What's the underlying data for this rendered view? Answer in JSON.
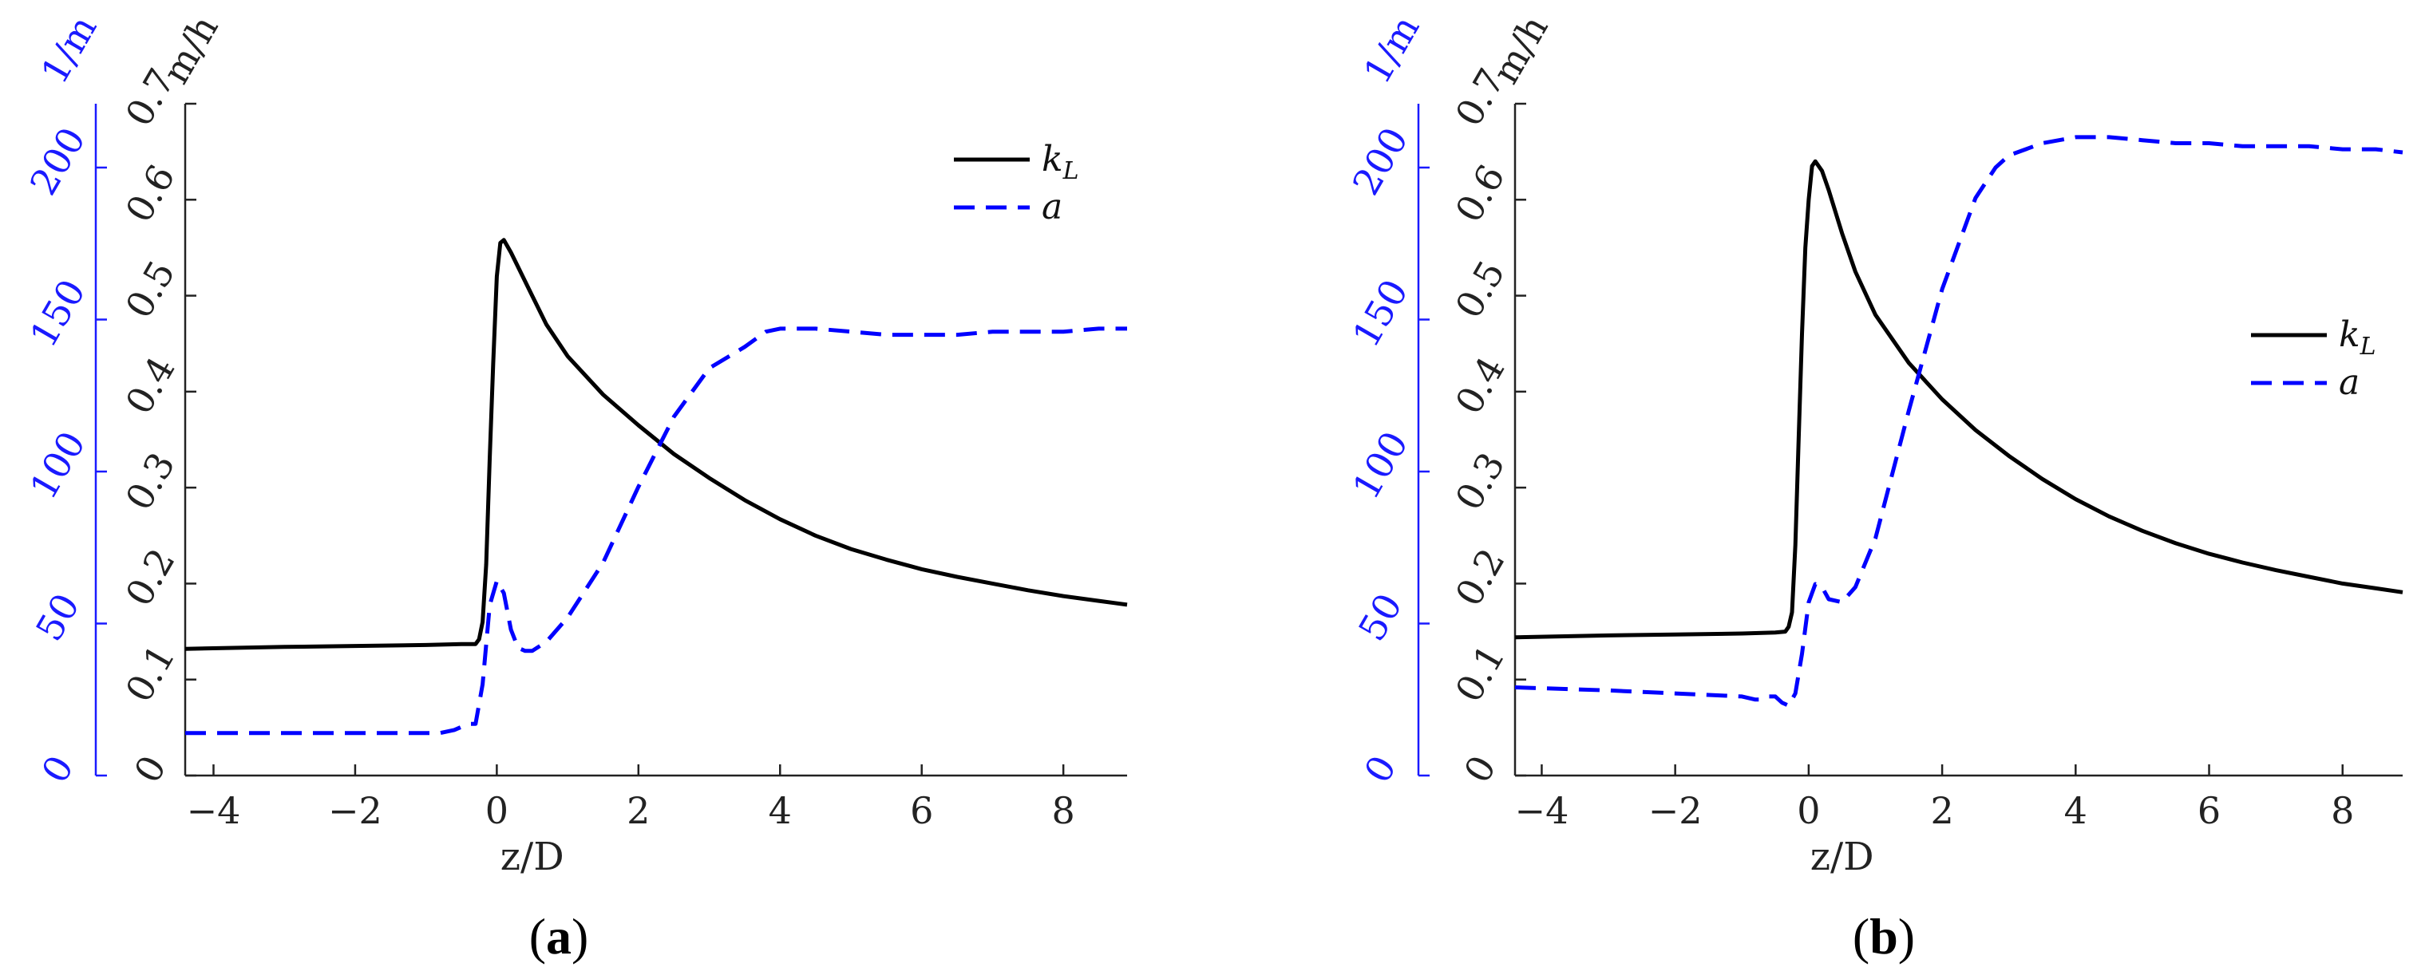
{
  "colors": {
    "kL": "#000000",
    "a": "#0000ff",
    "axis_k": "#222222",
    "axis_a": "#1a1aff"
  },
  "chart_data": [
    {
      "type": "line",
      "panel_label": "a",
      "xlabel": "z/D",
      "x_ticks": [
        -4,
        -2,
        0,
        2,
        4,
        6,
        8
      ],
      "xlim": [
        -4.4,
        8.9
      ],
      "kL_axis": {
        "unit": "m/h",
        "ylim": [
          0,
          0.7
        ],
        "ticks": [
          0,
          0.1,
          0.2,
          0.3,
          0.4,
          0.5,
          0.6,
          0.7
        ]
      },
      "a_axis": {
        "unit": "1/m",
        "ylim": [
          0,
          221
        ],
        "ticks": [
          0,
          50,
          100,
          150,
          200
        ]
      },
      "legend": {
        "position": "top-right"
      },
      "series": [
        {
          "name": "k",
          "name_subscript": "L",
          "axis": "kL",
          "style": "solid",
          "x": [
            -4.4,
            -3,
            -2,
            -1,
            -0.5,
            -0.3,
            -0.25,
            -0.2,
            -0.15,
            -0.1,
            -0.05,
            0,
            0.05,
            0.1,
            0.2,
            0.3,
            0.5,
            0.7,
            1,
            1.5,
            2,
            2.5,
            3,
            3.5,
            4,
            4.5,
            5,
            5.5,
            6,
            6.5,
            7,
            7.5,
            8,
            8.5,
            8.9
          ],
          "y": [
            0.132,
            0.134,
            0.135,
            0.136,
            0.137,
            0.137,
            0.142,
            0.16,
            0.22,
            0.33,
            0.43,
            0.52,
            0.555,
            0.558,
            0.545,
            0.53,
            0.5,
            0.47,
            0.437,
            0.397,
            0.365,
            0.335,
            0.31,
            0.287,
            0.267,
            0.25,
            0.236,
            0.225,
            0.215,
            0.207,
            0.2,
            0.193,
            0.187,
            0.182,
            0.178
          ]
        },
        {
          "name": "a",
          "axis": "a",
          "style": "dashed",
          "x": [
            -4.4,
            -3,
            -2,
            -1,
            -0.8,
            -0.6,
            -0.4,
            -0.3,
            -0.2,
            -0.1,
            0,
            0.1,
            0.2,
            0.3,
            0.4,
            0.5,
            0.7,
            1,
            1.5,
            2,
            2.5,
            3,
            3.5,
            3.8,
            4,
            4.5,
            5,
            5.5,
            6,
            6.5,
            7,
            7.5,
            8,
            8.5,
            8.9
          ],
          "y": [
            14,
            14,
            14,
            14,
            14,
            15,
            17,
            17,
            30,
            56,
            64,
            60,
            48,
            42,
            41,
            41,
            44,
            52,
            70,
            95,
            118,
            134,
            141,
            146,
            147,
            147,
            146,
            145,
            145,
            145,
            146,
            146,
            146,
            147,
            147
          ]
        }
      ]
    },
    {
      "type": "line",
      "panel_label": "b",
      "xlabel": "z/D",
      "x_ticks": [
        -4,
        -2,
        0,
        2,
        4,
        6,
        8
      ],
      "xlim": [
        -4.4,
        8.9
      ],
      "kL_axis": {
        "unit": "m/h",
        "ylim": [
          0,
          0.7
        ],
        "ticks": [
          0,
          0.1,
          0.2,
          0.3,
          0.4,
          0.5,
          0.6,
          0.7
        ]
      },
      "a_axis": {
        "unit": "1/m",
        "ylim": [
          0,
          221
        ],
        "ticks": [
          0,
          50,
          100,
          150,
          200
        ]
      },
      "legend": {
        "position": "right"
      },
      "series": [
        {
          "name": "k",
          "name_subscript": "L",
          "axis": "kL",
          "style": "solid",
          "x": [
            -4.4,
            -3,
            -2,
            -1,
            -0.5,
            -0.35,
            -0.3,
            -0.25,
            -0.2,
            -0.15,
            -0.1,
            -0.05,
            0,
            0.05,
            0.1,
            0.2,
            0.3,
            0.5,
            0.7,
            1,
            1.5,
            2,
            2.5,
            3,
            3.5,
            4,
            4.5,
            5,
            5.5,
            6,
            6.5,
            7,
            7.5,
            8,
            8.5,
            8.9
          ],
          "y": [
            0.144,
            0.146,
            0.147,
            0.148,
            0.149,
            0.15,
            0.155,
            0.17,
            0.24,
            0.35,
            0.46,
            0.55,
            0.6,
            0.635,
            0.64,
            0.63,
            0.61,
            0.565,
            0.525,
            0.48,
            0.43,
            0.392,
            0.36,
            0.333,
            0.309,
            0.288,
            0.27,
            0.255,
            0.242,
            0.231,
            0.222,
            0.214,
            0.207,
            0.2,
            0.195,
            0.191
          ]
        },
        {
          "name": "a",
          "axis": "a",
          "style": "dashed",
          "x": [
            -4.4,
            -3,
            -2,
            -1,
            -0.8,
            -0.7,
            -0.6,
            -0.5,
            -0.4,
            -0.3,
            -0.2,
            -0.1,
            0,
            0.1,
            0.2,
            0.3,
            0.5,
            0.7,
            1,
            1.5,
            2,
            2.5,
            2.8,
            3,
            3.5,
            4,
            4.5,
            5,
            5.5,
            6,
            6.5,
            7,
            7.5,
            8,
            8.5,
            8.9
          ],
          "y": [
            29,
            28,
            27,
            26,
            25,
            25,
            26,
            26,
            24,
            23,
            27,
            40,
            57,
            63,
            62,
            58,
            57,
            62,
            78,
            120,
            160,
            190,
            200,
            204,
            208,
            210,
            210,
            209,
            208,
            208,
            207,
            207,
            207,
            206,
            206,
            205
          ]
        }
      ]
    }
  ]
}
